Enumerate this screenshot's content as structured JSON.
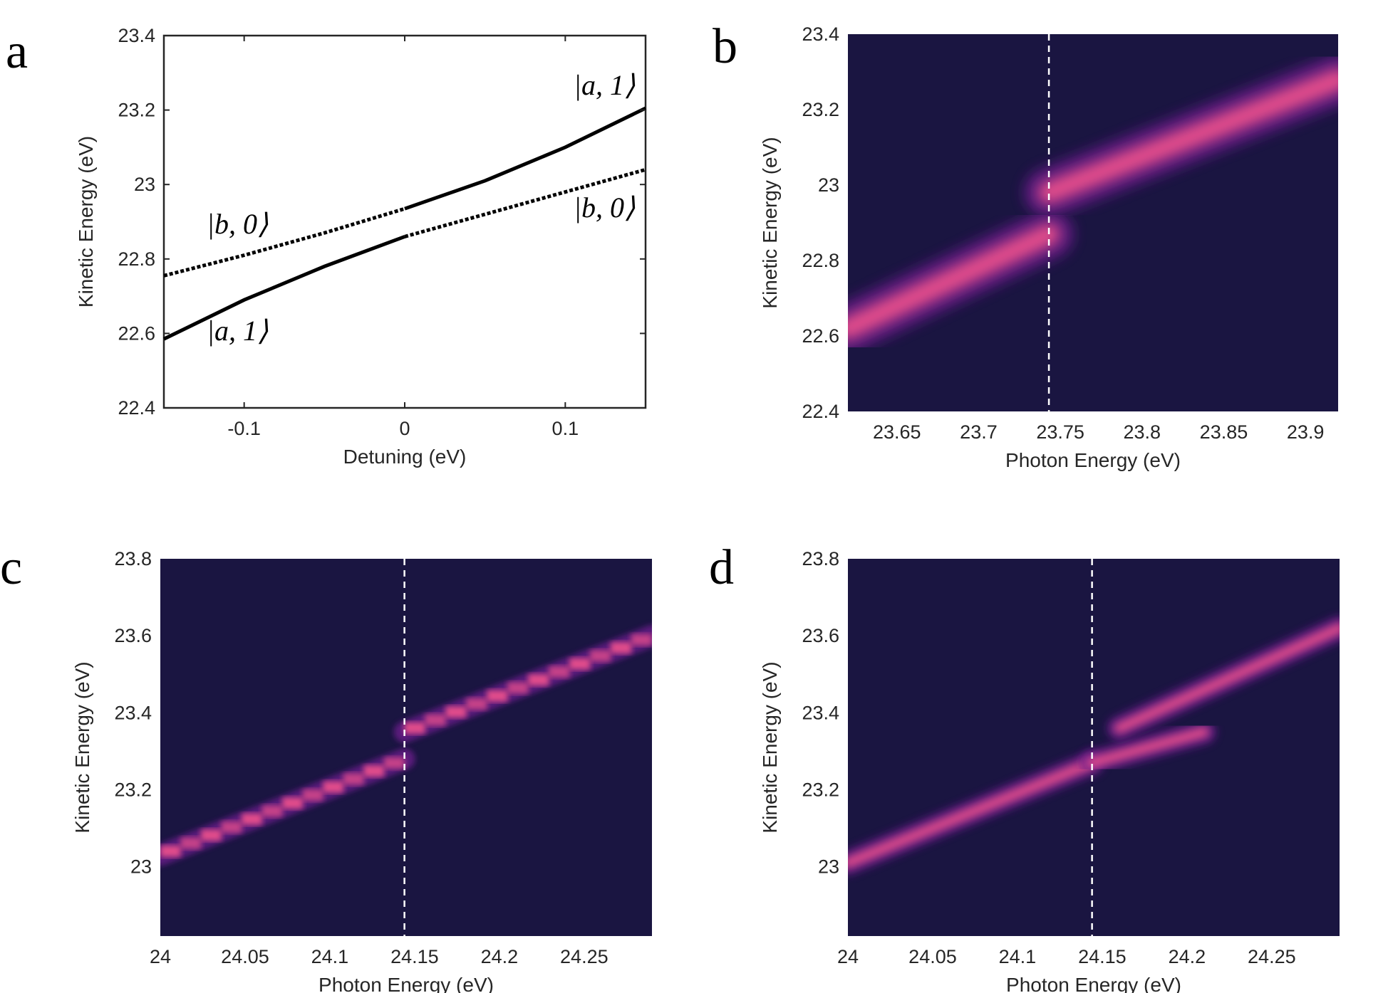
{
  "chart_data": [
    {
      "panel": "a",
      "type": "line",
      "xlabel": "Detuning (eV)",
      "ylabel": "Kinetic Energy (eV)",
      "xlim": [
        -0.15,
        0.15
      ],
      "ylim": [
        22.4,
        23.4
      ],
      "xticks": [
        -0.1,
        0,
        0.1
      ],
      "xtick_labels": [
        "-0.1",
        "0",
        "0.1"
      ],
      "yticks": [
        22.4,
        22.6,
        22.8,
        23,
        23.2,
        23.4
      ],
      "ytick_labels": [
        "22.4",
        "22.6",
        "22.8",
        "23",
        "23.2",
        "23.4"
      ],
      "series": [
        {
          "name": "a1_lower_solid",
          "style": "solid",
          "x": [
            -0.15,
            -0.1,
            -0.05,
            0
          ],
          "y": [
            22.585,
            22.69,
            22.78,
            22.86
          ]
        },
        {
          "name": "b0_upper_dotted",
          "style": "dotted",
          "x": [
            -0.15,
            -0.1,
            -0.05,
            0
          ],
          "y": [
            22.755,
            22.81,
            22.87,
            22.935
          ]
        },
        {
          "name": "a1_upper_solid",
          "style": "solid",
          "x": [
            0,
            0.05,
            0.1,
            0.15
          ],
          "y": [
            22.935,
            23.01,
            23.1,
            23.205
          ]
        },
        {
          "name": "b0_lower_dotted",
          "style": "dotted",
          "x": [
            0,
            0.05,
            0.1,
            0.15
          ],
          "y": [
            22.86,
            22.92,
            22.98,
            23.04
          ]
        }
      ],
      "annotations": [
        {
          "text": "|a, 1⟩",
          "x": 0.13,
          "y": 23.25
        },
        {
          "text": "|b, 0⟩",
          "x": -0.12,
          "y": 22.88
        },
        {
          "text": "|b, 0⟩",
          "x": 0.123,
          "y": 22.94
        },
        {
          "text": "|a, 1⟩",
          "x": -0.105,
          "y": 22.59
        }
      ]
    },
    {
      "panel": "b",
      "type": "heatmap",
      "xlabel": "Photon Energy (eV)",
      "ylabel": "Kinetic Energy (eV)",
      "xlim": [
        23.62,
        23.92
      ],
      "ylim": [
        22.4,
        23.4
      ],
      "xticks": [
        23.65,
        23.7,
        23.75,
        23.8,
        23.85,
        23.9
      ],
      "xtick_labels": [
        "23.65",
        "23.7",
        "23.75",
        "23.8",
        "23.85",
        "23.9"
      ],
      "yticks": [
        22.4,
        22.6,
        22.8,
        23,
        23.2,
        23.4
      ],
      "ytick_labels": [
        "22.4",
        "22.6",
        "22.8",
        "23",
        "23.2",
        "23.4"
      ],
      "dashed_line_x": 23.743,
      "bands": [
        {
          "x": [
            23.62,
            23.743
          ],
          "y": [
            22.62,
            22.87
          ]
        },
        {
          "x": [
            23.743,
            23.92
          ],
          "y": [
            22.98,
            23.28
          ]
        }
      ]
    },
    {
      "panel": "c",
      "type": "heatmap",
      "xlabel": "Photon Energy (eV)",
      "ylabel": "Kinetic Energy (eV)",
      "xlim": [
        24.0,
        24.29
      ],
      "ylim": [
        22.82,
        23.8
      ],
      "xticks": [
        24,
        24.05,
        24.1,
        24.15,
        24.2,
        24.25
      ],
      "xtick_labels": [
        "24",
        "24.05",
        "24.1",
        "24.15",
        "24.2",
        "24.25"
      ],
      "yticks": [
        23,
        23.2,
        23.4,
        23.6,
        23.8
      ],
      "ytick_labels": [
        "23",
        "23.2",
        "23.4",
        "23.6",
        "23.8"
      ],
      "dashed_line_x": 24.144,
      "bands": [
        {
          "x": [
            24.0,
            24.144
          ],
          "y": [
            23.03,
            23.28
          ]
        },
        {
          "x": [
            24.144,
            24.29
          ],
          "y": [
            23.35,
            23.6
          ]
        }
      ]
    },
    {
      "panel": "d",
      "type": "heatmap",
      "xlabel": "Photon Energy (eV)",
      "ylabel": "Kinetic Energy (eV)",
      "xlim": [
        24.0,
        24.29
      ],
      "ylim": [
        22.82,
        23.8
      ],
      "xticks": [
        24,
        24.05,
        24.1,
        24.15,
        24.2,
        24.25
      ],
      "xtick_labels": [
        "24",
        "24.05",
        "24.1",
        "24.15",
        "24.2",
        "24.25"
      ],
      "yticks": [
        23,
        23.2,
        23.4,
        23.6,
        23.8
      ],
      "ytick_labels": [
        "23",
        "23.2",
        "23.4",
        "23.6",
        "23.8"
      ],
      "dashed_line_x": 24.144,
      "bands": [
        {
          "x": [
            24.0,
            24.144
          ],
          "y": [
            23.01,
            23.27
          ]
        },
        {
          "x": [
            24.144,
            24.21
          ],
          "y": [
            23.27,
            23.35
          ]
        },
        {
          "x": [
            24.16,
            24.29
          ],
          "y": [
            23.36,
            23.62
          ]
        }
      ]
    }
  ],
  "panel_labels": [
    "a",
    "b",
    "c",
    "d"
  ],
  "colors": {
    "background": "#1a1541",
    "band_core": "#e8508c",
    "band_glow": "#6a1f8a",
    "axis": "#262626"
  }
}
